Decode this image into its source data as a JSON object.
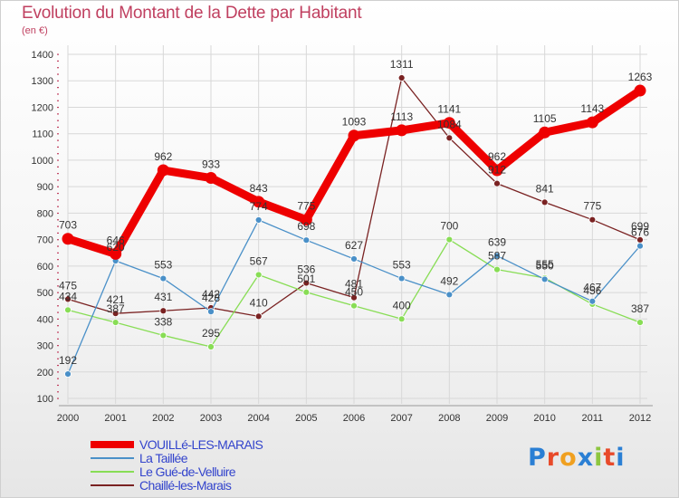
{
  "chart_data": {
    "type": "line",
    "title": "Evolution du Montant de la Dette par Habitant",
    "subtitle": "(en €)",
    "ylim": [
      100,
      1400
    ],
    "yticks": [
      100,
      200,
      300,
      400,
      500,
      600,
      700,
      800,
      900,
      1000,
      1100,
      1200,
      1300,
      1400
    ],
    "grid": true,
    "legend_position": "bottom-left",
    "x": [
      "2000",
      "2001",
      "2002",
      "2003",
      "2004",
      "2005",
      "2006",
      "2007",
      "2008",
      "2009",
      "2010",
      "2011",
      "2012"
    ],
    "series": [
      {
        "name": "VOUILLé-LES-MARAIS",
        "color": "#ee0000",
        "values": [
          703,
          646,
          962,
          933,
          843,
          775,
          1093,
          1113,
          1141,
          962,
          1105,
          1143,
          1263
        ]
      },
      {
        "name": "La Taillée",
        "color": "#4a90c8",
        "values": [
          192,
          620,
          553,
          428,
          774,
          698,
          627,
          553,
          492,
          639,
          550,
          467,
          676
        ]
      },
      {
        "name": "Le Gué-de-Velluire",
        "color": "#88dd55",
        "values": [
          434,
          387,
          338,
          295,
          567,
          501,
          450,
          400,
          700,
          587,
          555,
          456,
          387
        ]
      },
      {
        "name": "Chaillé-les-Marais",
        "color": "#7a2222",
        "values": [
          475,
          421,
          431,
          442,
          410,
          536,
          481,
          1311,
          1084,
          912,
          841,
          775,
          699
        ]
      }
    ]
  },
  "branding": {
    "logo_text": "Proxiti",
    "logo_colors": [
      "#2a7fd4",
      "#e84a2a",
      "#f0a020",
      "#2a7fd4",
      "#8dc63f",
      "#e84a2a",
      "#2a7fd4"
    ]
  }
}
